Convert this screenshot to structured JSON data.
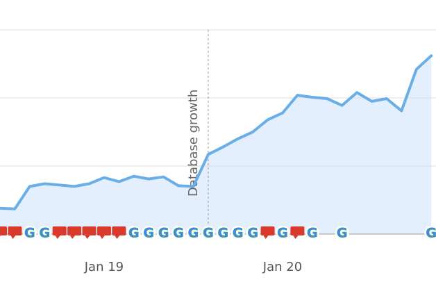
{
  "chart_data": {
    "type": "area",
    "categories": [
      null,
      null,
      null,
      null,
      null,
      null,
      null,
      "Jan 19",
      null,
      null,
      null,
      null,
      null,
      null,
      null,
      null,
      null,
      null,
      null,
      "Jan 20",
      null,
      null,
      null,
      null,
      null,
      null,
      null,
      null,
      null,
      null
    ],
    "values": [
      0.38,
      0.37,
      0.7,
      0.74,
      0.72,
      0.7,
      0.74,
      0.83,
      0.77,
      0.85,
      0.81,
      0.84,
      0.71,
      0.7,
      1.17,
      1.28,
      1.4,
      1.5,
      1.68,
      1.78,
      2.04,
      2.01,
      1.99,
      1.89,
      2.08,
      1.95,
      1.99,
      1.81,
      2.42,
      2.62
    ],
    "color": "#6aaee8",
    "fill_color": "#e3effc",
    "ylim": [
      0,
      3
    ],
    "gridlines": [
      0,
      1,
      2,
      3
    ],
    "grid": true,
    "annotation": {
      "label": "Database growth",
      "x": 14
    },
    "events": [
      "note",
      "note",
      "G",
      "G",
      "note",
      "note",
      "note",
      "note",
      "note",
      "G",
      "G",
      "G",
      "G",
      "G",
      "G",
      "G",
      "G",
      "G",
      "note",
      "G",
      "note",
      "G",
      null,
      "G",
      null,
      null,
      null,
      null,
      null,
      "G"
    ]
  }
}
